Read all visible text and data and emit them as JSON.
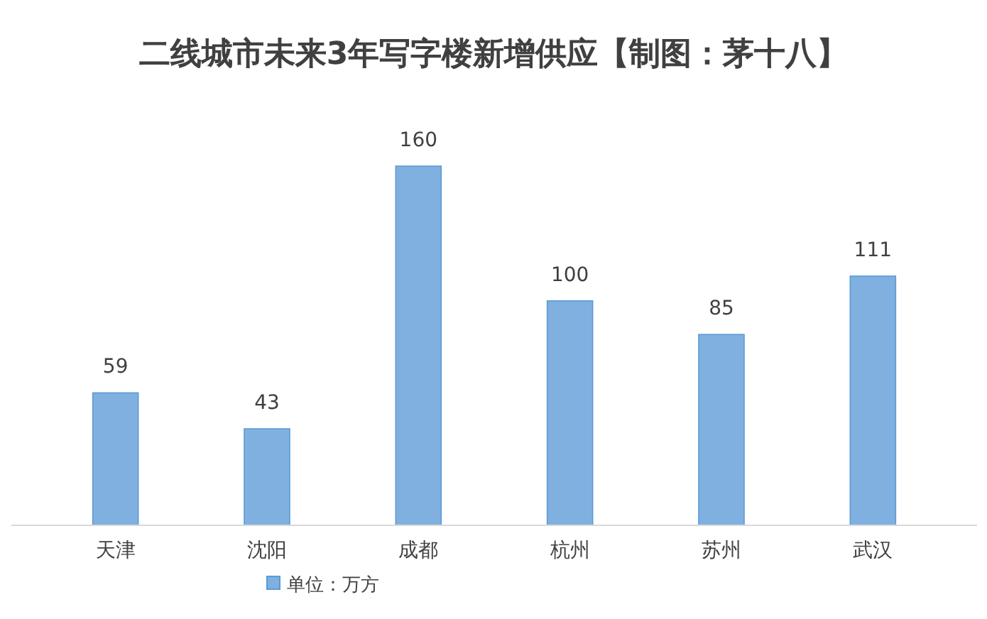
{
  "chart_data": {
    "type": "bar",
    "title": "二线城市未来3年写字楼新增供应【制图：茅十八】",
    "categories": [
      "天津",
      "沈阳",
      "成都",
      "杭州",
      "苏州",
      "武汉"
    ],
    "series": [
      {
        "name": "单位：万方",
        "color": "#7fb0e0",
        "values": [
          59,
          43,
          160,
          100,
          85,
          111
        ]
      }
    ],
    "data_labels": true,
    "legend": "bottom"
  }
}
